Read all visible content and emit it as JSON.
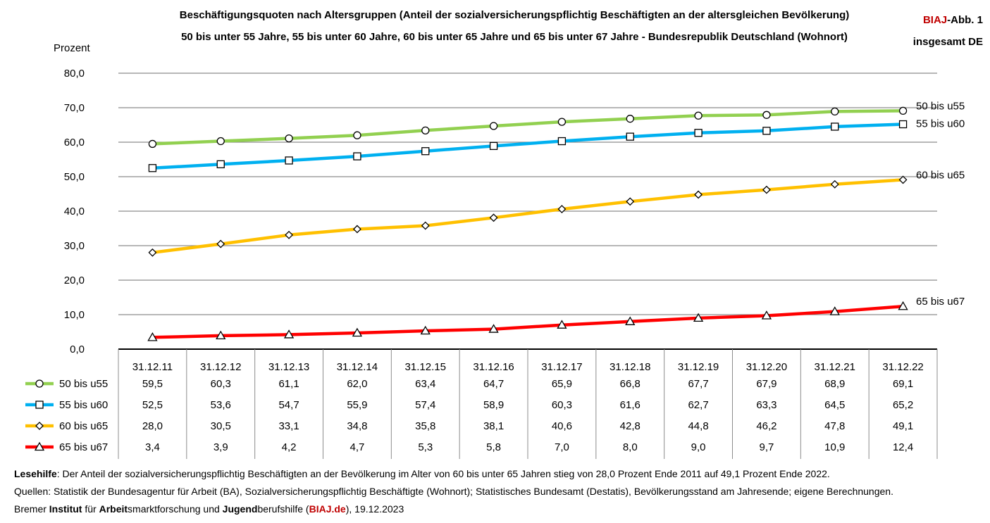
{
  "header": {
    "title_line1": "Beschäftigungsquoten nach Altersgruppen (Anteil der sozialversicherungspflichtig Beschäftigten an der altersgleichen Bevölkerung)",
    "title_line2": "50 bis unter 55 Jahre, 55 bis unter 60 Jahre, 60 bis unter 65 Jahre und 65 bis unter 67 Jahre - Bundesrepublik Deutschland (Wohnort)",
    "brand_red": "BIAJ",
    "brand_rest": "-Abb. 1",
    "brand_line2": "insgesamt DE"
  },
  "chart_data": {
    "type": "line",
    "ylabel": "Prozent",
    "ylim": [
      0,
      80
    ],
    "yticks": [
      "0,0",
      "10,0",
      "20,0",
      "30,0",
      "40,0",
      "50,0",
      "60,0",
      "70,0",
      "80,0"
    ],
    "categories": [
      "31.12.11",
      "31.12.12",
      "31.12.13",
      "31.12.14",
      "31.12.15",
      "31.12.16",
      "31.12.17",
      "31.12.18",
      "31.12.19",
      "31.12.20",
      "31.12.21",
      "31.12.22"
    ],
    "series": [
      {
        "name": "50 bis u55",
        "color": "#92d050",
        "marker": "circle",
        "values": [
          59.5,
          60.3,
          61.1,
          62.0,
          63.4,
          64.7,
          65.9,
          66.8,
          67.7,
          67.9,
          68.9,
          69.1
        ],
        "labels": [
          "59,5",
          "60,3",
          "61,1",
          "62,0",
          "63,4",
          "64,7",
          "65,9",
          "66,8",
          "67,7",
          "67,9",
          "68,9",
          "69,1"
        ]
      },
      {
        "name": "55 bis u60",
        "color": "#00b0f0",
        "marker": "square",
        "values": [
          52.5,
          53.6,
          54.7,
          55.9,
          57.4,
          58.9,
          60.3,
          61.6,
          62.7,
          63.3,
          64.5,
          65.2
        ],
        "labels": [
          "52,5",
          "53,6",
          "54,7",
          "55,9",
          "57,4",
          "58,9",
          "60,3",
          "61,6",
          "62,7",
          "63,3",
          "64,5",
          "65,2"
        ]
      },
      {
        "name": "60 bis u65",
        "color": "#ffc000",
        "marker": "diamond",
        "values": [
          28.0,
          30.5,
          33.1,
          34.8,
          35.8,
          38.1,
          40.6,
          42.8,
          44.8,
          46.2,
          47.8,
          49.1
        ],
        "labels": [
          "28,0",
          "30,5",
          "33,1",
          "34,8",
          "35,8",
          "38,1",
          "40,6",
          "42,8",
          "44,8",
          "46,2",
          "47,8",
          "49,1"
        ]
      },
      {
        "name": "65 bis u67",
        "color": "#ff0000",
        "marker": "triangle",
        "values": [
          3.4,
          3.9,
          4.2,
          4.7,
          5.3,
          5.8,
          7.0,
          8.0,
          9.0,
          9.7,
          10.9,
          12.4
        ],
        "labels": [
          "3,4",
          "3,9",
          "4,2",
          "4,7",
          "5,3",
          "5,8",
          "7,0",
          "8,0",
          "9,0",
          "9,7",
          "10,9",
          "12,4"
        ]
      }
    ],
    "grid": true,
    "legend": "data-table-left"
  },
  "footer": {
    "lesehilfe_label": "Lesehilfe",
    "lesehilfe_text": ": Der Anteil der sozialversicherungspflichtig Beschäftigten an der Bevölkerung im Alter von 60 bis unter 65 Jahren stieg von 28,0 Prozent Ende 2011 auf 49,1 Prozent Ende 2022.",
    "sources": "Quellen: Statistik der Bundesagentur für Arbeit (BA), Sozialversicherungspflichtig Beschäftigte (Wohnort); Statistisches Bundesamt (Destatis), Bevölkerungsstand am Jahresende; eigene Berechnungen.",
    "inst_a": "Bremer ",
    "inst_b": "Institut",
    "inst_c": " für ",
    "inst_d": "Arbeit",
    "inst_e": "smarktforschung und ",
    "inst_f": "Jugend",
    "inst_g": "berufshilfe (",
    "inst_h": "BIAJ.de",
    "inst_i": "), 19.12.2023"
  }
}
